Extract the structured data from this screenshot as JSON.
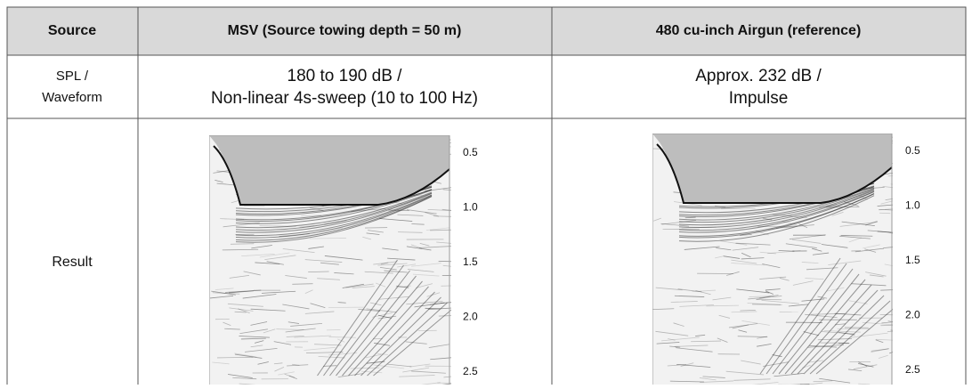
{
  "table": {
    "header": [
      "Source",
      "MSV (Source towing depth = 50 m)",
      "480 cu-inch Airgun (reference)"
    ],
    "rows": [
      [
        [
          "SPL /",
          "Waveform"
        ],
        [
          "180 to 190 dB /",
          "Non-linear 4s-sweep (10 to 100 Hz)"
        ],
        [
          "Approx. 232 dB /",
          "Impulse"
        ]
      ],
      [
        "Result",
        {
          "axis_labels": [
            "0.5",
            "1.0",
            "1.5",
            "2.0",
            "2.5"
          ]
        },
        {
          "axis_labels": [
            "0.5",
            "1.0",
            "1.5",
            "2.0",
            "2.5"
          ]
        }
      ]
    ]
  }
}
